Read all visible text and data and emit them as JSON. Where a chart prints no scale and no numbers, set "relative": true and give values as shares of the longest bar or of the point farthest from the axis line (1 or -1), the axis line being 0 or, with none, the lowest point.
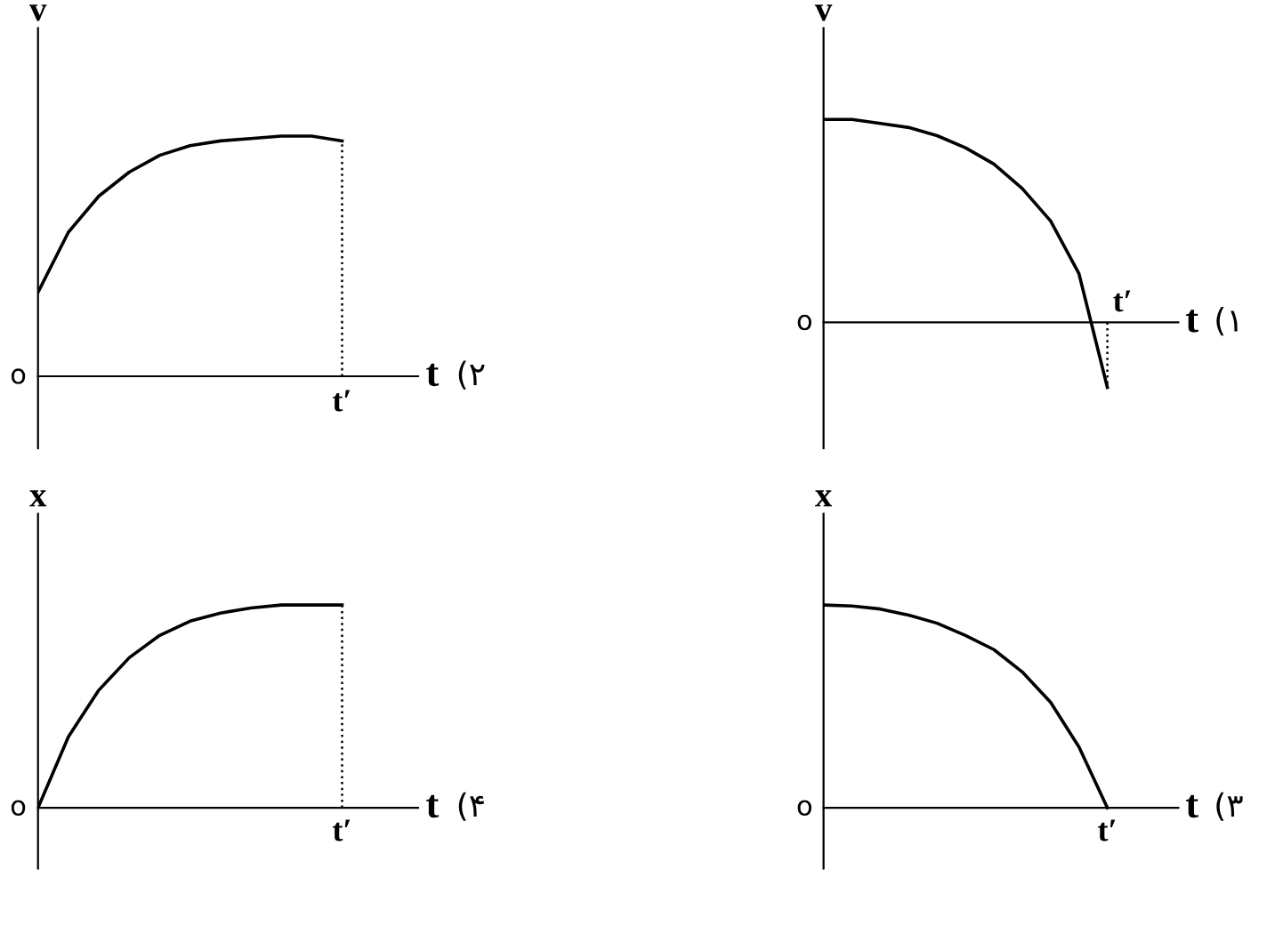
{
  "chart_data": [
    {
      "type": "line",
      "relative": true,
      "ylabel": "v",
      "xlabel": "t",
      "annotations": [
        "(۲",
        "o",
        "t′"
      ],
      "color": "#000000",
      "categories": [
        null,
        null,
        null,
        null,
        null,
        null,
        null,
        null,
        null,
        null,
        null
      ],
      "values": [
        0.35,
        0.6,
        0.75,
        0.85,
        0.92,
        0.96,
        0.98,
        0.99,
        1,
        1,
        0.98
      ],
      "ref_lines": [
        {
          "axis": "x",
          "line_style": "dotted"
        }
      ],
      "grid": false,
      "legend": false
    },
    {
      "type": "line",
      "relative": true,
      "ylabel": "v",
      "xlabel": "t",
      "annotations": [
        "(۱",
        "o",
        "t′"
      ],
      "color": "#000000",
      "categories": [
        null,
        null,
        null,
        null,
        null,
        null,
        null,
        null,
        null,
        null,
        null
      ],
      "values": [
        1,
        1,
        0.98,
        0.96,
        0.92,
        0.86,
        0.78,
        0.66,
        0.5,
        0.24,
        -0.32
      ],
      "ref_lines": [
        {
          "axis": "x",
          "line_style": "dotted"
        }
      ],
      "grid": false,
      "legend": false
    },
    {
      "type": "line",
      "relative": true,
      "ylabel": "x",
      "xlabel": "t",
      "annotations": [
        "(۴",
        "o",
        "t′"
      ],
      "color": "#000000",
      "categories": [
        null,
        null,
        null,
        null,
        null,
        null,
        null,
        null,
        null,
        null,
        null
      ],
      "values": [
        0,
        0.35,
        0.58,
        0.74,
        0.85,
        0.92,
        0.96,
        0.985,
        1,
        1,
        1
      ],
      "ref_lines": [
        {
          "axis": "x",
          "line_style": "dotted"
        }
      ],
      "grid": false,
      "legend": false
    },
    {
      "type": "line",
      "relative": true,
      "ylabel": "x",
      "xlabel": "t",
      "annotations": [
        "(۳",
        "o",
        "t′"
      ],
      "color": "#000000",
      "categories": [
        null,
        null,
        null,
        null,
        null,
        null,
        null,
        null,
        null,
        null,
        null
      ],
      "values": [
        1,
        0.995,
        0.98,
        0.95,
        0.91,
        0.85,
        0.78,
        0.67,
        0.52,
        0.3,
        0
      ],
      "grid": false,
      "legend": false
    }
  ]
}
